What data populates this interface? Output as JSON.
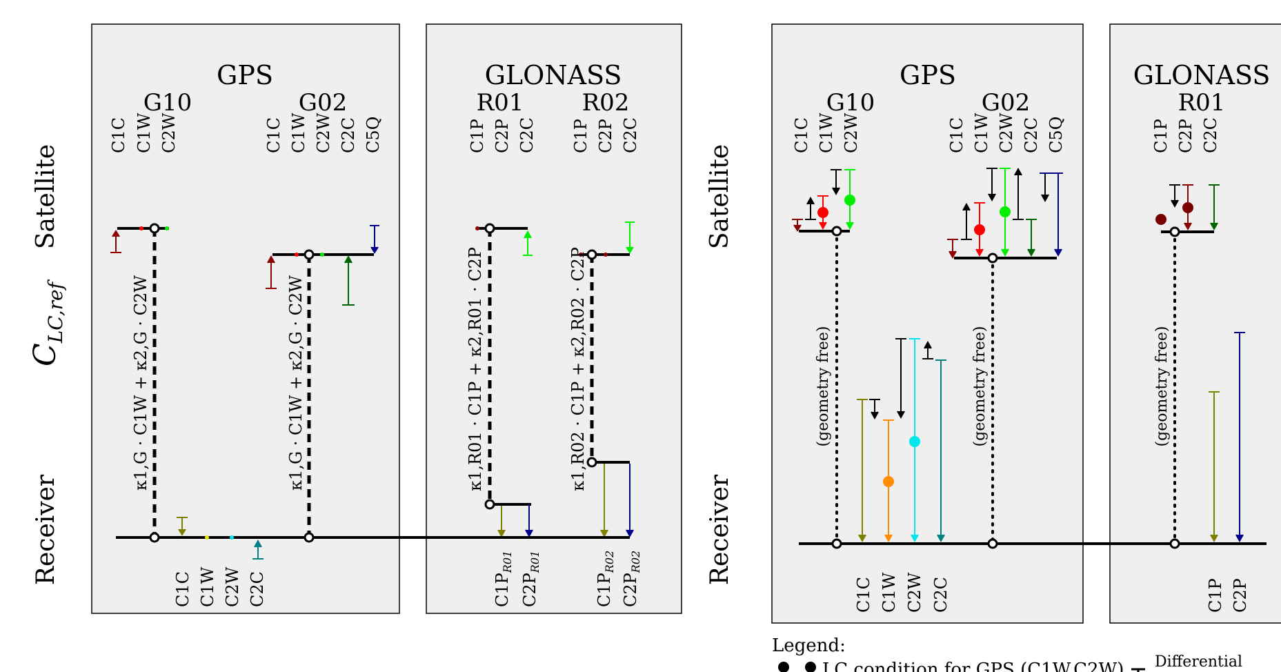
{
  "row_labels": {
    "satellite": "Satellite",
    "clc_main": "C",
    "clc_sub": "LC,ref",
    "receiver": "Receiver"
  },
  "colors": {
    "C1C": "#8b0000",
    "C1W": "#ff0000",
    "C2W": "#00ee00",
    "C2C": "#006400",
    "C5Q": "#00008b",
    "C1P": "#8b0000",
    "C2P": "#228b22",
    "rx_C1C": "#808000",
    "rx_C1W": "#ff8c00",
    "rx_C2W": "#00e5ee",
    "rx_C2C": "#008080",
    "rx_C1P": "#808000",
    "rx_C2P": "#00008b",
    "panel_bg": "#efefef"
  },
  "left": {
    "gps": {
      "title": "GPS",
      "g10": {
        "name": "G10",
        "codes": [
          "C1C",
          "C1W",
          "C2W"
        ]
      },
      "g02": {
        "name": "G02",
        "codes": [
          "C1C",
          "C1W",
          "C2W",
          "C2C",
          "C5Q"
        ]
      },
      "lc_g10": "κ1,G · C1W + κ2,G · C2W",
      "lc_g02": "κ1,G · C1W + κ2,G · C2W",
      "rx_codes": [
        "C1C",
        "C1W",
        "C2W",
        "C2C"
      ]
    },
    "glonass": {
      "title": "GLONASS",
      "r01": {
        "name": "R01",
        "codes": [
          "C1P",
          "C2P",
          "C2C"
        ]
      },
      "r02": {
        "name": "R02",
        "codes": [
          "C1P",
          "C2P",
          "C2C"
        ]
      },
      "lc_r01": "κ1,R01 · C1P + κ2,R01 · C2P",
      "lc_r02": "κ1,R02 · C1P + κ2,R02 · C2P",
      "rx_codes_r01": [
        "C1P",
        "C2P"
      ],
      "rx_sub_r01": "R01",
      "rx_codes_r02": [
        "C1P",
        "C2P"
      ],
      "rx_sub_r02": "R02"
    }
  },
  "right": {
    "gps": {
      "title": "GPS",
      "g10": {
        "name": "G10",
        "codes": [
          "C1C",
          "C1W",
          "C2W"
        ]
      },
      "g02": {
        "name": "G02",
        "codes": [
          "C1C",
          "C1W",
          "C2W",
          "C2C",
          "C5Q"
        ]
      },
      "geometry_free": "(geometry free)",
      "rx_codes": [
        "C1C",
        "C1W",
        "C2W",
        "C2C"
      ]
    },
    "glonass": {
      "title": "GLONASS",
      "r01": {
        "name": "R01",
        "codes": [
          "C1P",
          "C2P",
          "C2C"
        ]
      },
      "geometry_free": "(geometry free)",
      "rx_codes": [
        "C1P",
        "C2P"
      ]
    }
  },
  "legend": {
    "title": "Legend:",
    "lc_condition": "LC condition for GPS (C1W,C2W)",
    "differential": "Differential"
  }
}
